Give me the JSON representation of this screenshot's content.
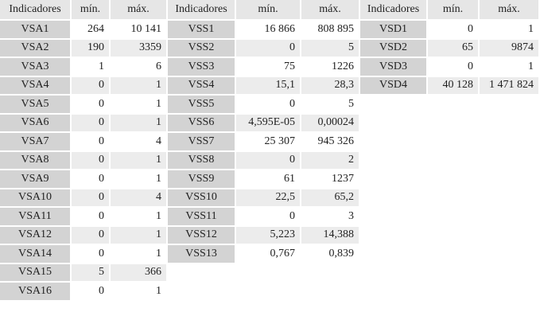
{
  "tables": [
    {
      "header": [
        "Indicadores",
        "mín.",
        "máx."
      ],
      "rows": [
        [
          "VSA1",
          "264",
          "10 141"
        ],
        [
          "VSA2",
          "190",
          "3359"
        ],
        [
          "VSA3",
          "1",
          "6"
        ],
        [
          "VSA4",
          "0",
          "1"
        ],
        [
          "VSA5",
          "0",
          "1"
        ],
        [
          "VSA6",
          "0",
          "1"
        ],
        [
          "VSA7",
          "0",
          "4"
        ],
        [
          "VSA8",
          "0",
          "1"
        ],
        [
          "VSA9",
          "0",
          "1"
        ],
        [
          "VSA10",
          "0",
          "4"
        ],
        [
          "VSA11",
          "0",
          "1"
        ],
        [
          "VSA12",
          "0",
          "1"
        ],
        [
          "VSA14",
          "0",
          "1"
        ],
        [
          "VSA15",
          "5",
          "366"
        ],
        [
          "VSA16",
          "0",
          "1"
        ]
      ]
    },
    {
      "header": [
        "Indicadores",
        "mín.",
        "máx."
      ],
      "rows": [
        [
          "VSS1",
          "16 866",
          "808 895"
        ],
        [
          "VSS2",
          "0",
          "5"
        ],
        [
          "VSS3",
          "75",
          "1226"
        ],
        [
          "VSS4",
          "15,1",
          "28,3"
        ],
        [
          "VSS5",
          "0",
          "5"
        ],
        [
          "VSS6",
          "4,595E-05",
          "0,00024"
        ],
        [
          "VSS7",
          "25 307",
          "945 326"
        ],
        [
          "VSS8",
          "0",
          "2"
        ],
        [
          "VSS9",
          "61",
          "1237"
        ],
        [
          "VSS10",
          "22,5",
          "65,2"
        ],
        [
          "VSS11",
          "0",
          "3"
        ],
        [
          "VSS12",
          "5,223",
          "14,388"
        ],
        [
          "VSS13",
          "0,767",
          "0,839"
        ]
      ]
    },
    {
      "header": [
        "Indicadores",
        "mín.",
        "máx."
      ],
      "rows": [
        [
          "VSD1",
          "0",
          "1"
        ],
        [
          "VSD2",
          "65",
          "9874"
        ],
        [
          "VSD3",
          "0",
          "1"
        ],
        [
          "VSD4",
          "40 128",
          "1 471 824"
        ]
      ]
    }
  ]
}
